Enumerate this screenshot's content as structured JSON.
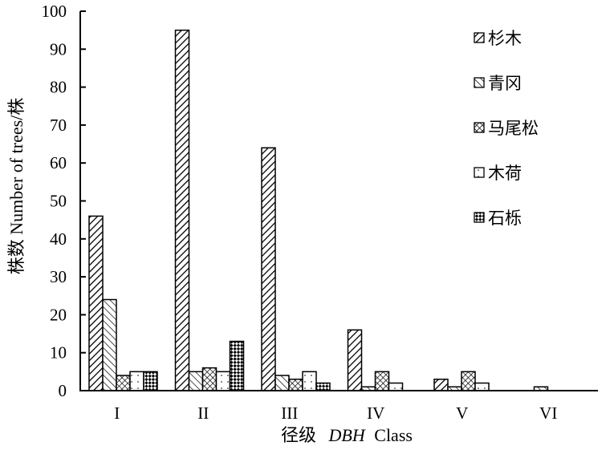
{
  "chart_data": {
    "type": "bar",
    "xlabel": "径级 DBH Class",
    "xlabel_cn": "径级",
    "xlabel_italic": "DBH",
    "xlabel_rest": "Class",
    "ylabel": "株数 Number of trees/株",
    "ylim": [
      0,
      100
    ],
    "yticks": [
      0,
      10,
      20,
      30,
      40,
      50,
      60,
      70,
      80,
      90,
      100
    ],
    "categories": [
      "I",
      "II",
      "III",
      "IV",
      "V",
      "VI"
    ],
    "legend_position": "top-right",
    "grid": false,
    "series": [
      {
        "name": "杉木",
        "pattern": "diag-dense",
        "values": [
          46,
          95,
          64,
          16,
          3,
          0
        ]
      },
      {
        "name": "青冈",
        "pattern": "diag-sparse",
        "values": [
          24,
          5,
          4,
          1,
          1,
          1
        ]
      },
      {
        "name": "马尾松",
        "pattern": "crosshatch",
        "values": [
          4,
          6,
          3,
          5,
          5,
          0
        ]
      },
      {
        "name": "木荷",
        "pattern": "dots",
        "values": [
          5,
          5,
          5,
          2,
          2,
          0
        ]
      },
      {
        "name": "石栎",
        "pattern": "checker",
        "values": [
          5,
          13,
          2,
          0,
          0,
          0
        ]
      }
    ]
  }
}
